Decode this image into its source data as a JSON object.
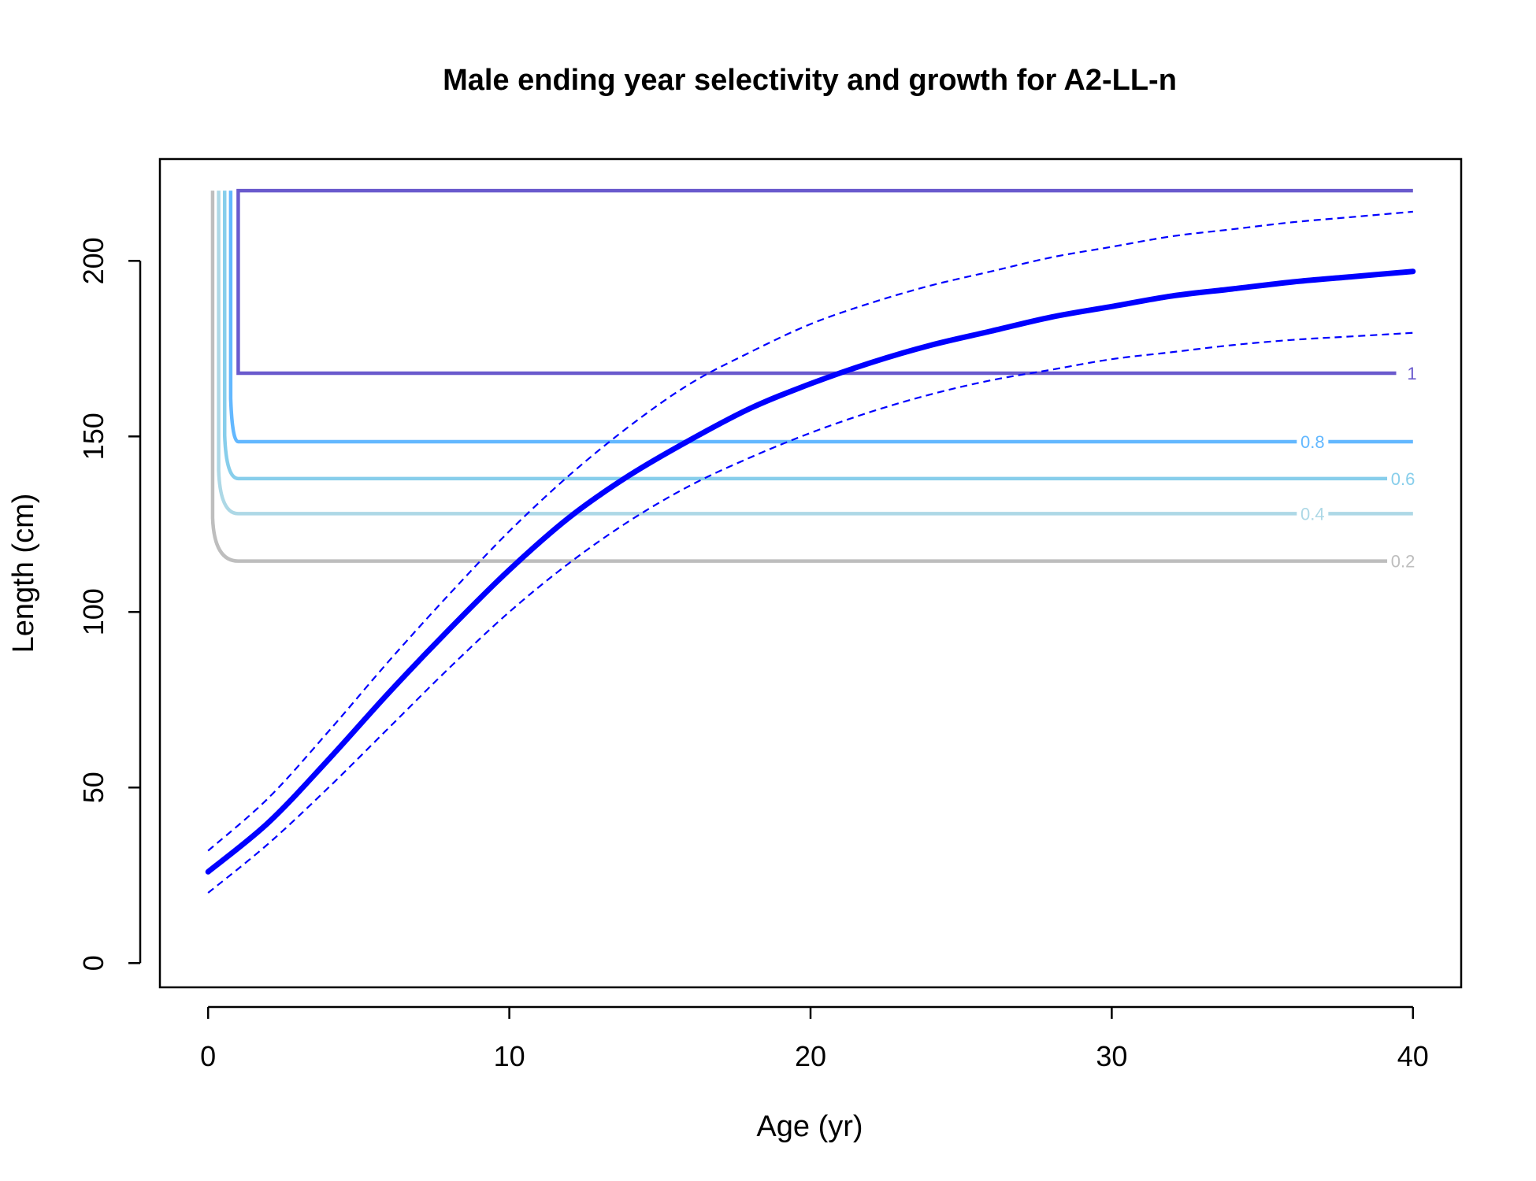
{
  "chart_data": {
    "type": "line",
    "title": "Male ending year selectivity and growth for A2-LL-n",
    "xlabel": "Age (yr)",
    "ylabel": "Length (cm)",
    "xlim": [
      -1.6,
      41.6
    ],
    "ylim": [
      -6.9,
      229
    ],
    "x_ticks": [
      0,
      10,
      20,
      30,
      40
    ],
    "y_ticks": [
      0,
      50,
      100,
      150,
      200
    ],
    "grid": false,
    "legend": "none",
    "growth": {
      "color": "#0000ff",
      "mean": {
        "x": [
          0,
          2,
          4,
          6,
          8,
          10,
          12,
          14,
          16,
          18,
          20,
          22,
          24,
          26,
          28,
          30,
          32,
          34,
          36,
          38,
          40
        ],
        "y": [
          26,
          40,
          58,
          77,
          95,
          112,
          127,
          139,
          149,
          158,
          165,
          171,
          176,
          180,
          184,
          187,
          190,
          192,
          194,
          195.5,
          197
        ]
      },
      "upper": {
        "x": [
          0,
          2,
          4,
          6,
          8,
          10,
          12,
          14,
          16,
          18,
          20,
          22,
          24,
          26,
          28,
          30,
          32,
          34,
          36,
          38,
          40
        ],
        "y": [
          32,
          47,
          66,
          86,
          105,
          123,
          139,
          153,
          165,
          174,
          182,
          188,
          193,
          197,
          201,
          204,
          207,
          209,
          211,
          212.5,
          214
        ]
      },
      "lower": {
        "x": [
          0,
          2,
          4,
          6,
          8,
          10,
          12,
          14,
          16,
          18,
          20,
          22,
          24,
          26,
          28,
          30,
          32,
          34,
          36,
          38,
          40
        ],
        "y": [
          20,
          34,
          50,
          67,
          84,
          100,
          114,
          126,
          136,
          144,
          151,
          157,
          162,
          166,
          169,
          172,
          174,
          176,
          177.5,
          178.5,
          179.5
        ]
      }
    },
    "selectivity_contours": [
      {
        "level": "0.2",
        "label": "0.2",
        "color": "#bebebe",
        "y": 114.5,
        "x_start": 0.15,
        "label_x": 39.3
      },
      {
        "level": "0.4",
        "label": "0.4",
        "color": "#add8e6",
        "y": 128,
        "x_start": 0.35,
        "label_x": 36.3
      },
      {
        "level": "0.6",
        "label": "0.6",
        "color": "#87ceeb",
        "y": 138,
        "x_start": 0.55,
        "label_x": 39.3
      },
      {
        "level": "0.8",
        "label": "0.8",
        "color": "#63b8ff",
        "y": 148.5,
        "x_start": 0.75,
        "label_x": 36.3
      },
      {
        "level": "1",
        "label": "1",
        "color": "#6a5acd",
        "y": 168,
        "x_start": 1.0,
        "label_x": 39.6,
        "box_top": 220
      }
    ]
  }
}
